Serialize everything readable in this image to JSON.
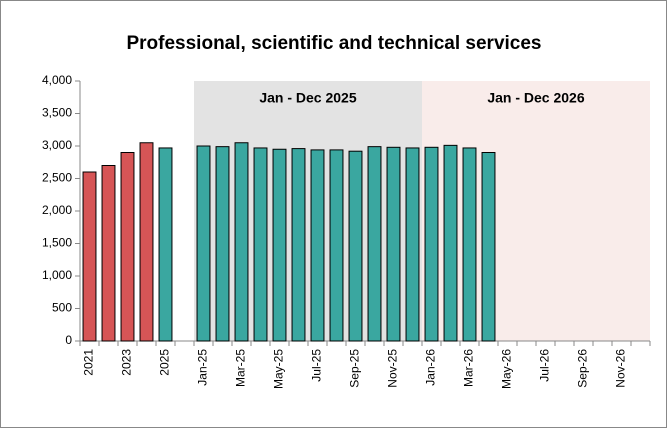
{
  "chart_data": {
    "type": "bar",
    "title": "Professional, scientific and technical services",
    "categories": [
      "2021",
      null,
      "2023",
      null,
      "2025",
      null,
      "Jan-25",
      null,
      "Mar-25",
      null,
      "May-25",
      null,
      "Jul-25",
      null,
      "Sep-25",
      null,
      "Nov-25",
      null,
      "Jan-26",
      null,
      "Mar-26",
      null,
      "May-26",
      null,
      "Jul-26",
      null,
      "Sep-26",
      null,
      "Nov-26",
      null
    ],
    "values": [
      2600,
      2700,
      2900,
      3050,
      2970,
      null,
      3000,
      2990,
      3050,
      2970,
      2950,
      2960,
      2940,
      2940,
      2920,
      2990,
      2980,
      2970,
      2980,
      3010,
      2970,
      2900,
      null,
      null,
      null,
      null,
      null,
      null,
      null,
      null
    ],
    "colors": [
      "#d65556",
      "#d65556",
      "#d65556",
      "#d65556",
      "#3aa7a0",
      null,
      "#3aa7a0",
      "#3aa7a0",
      "#3aa7a0",
      "#3aa7a0",
      "#3aa7a0",
      "#3aa7a0",
      "#3aa7a0",
      "#3aa7a0",
      "#3aa7a0",
      "#3aa7a0",
      "#3aa7a0",
      "#3aa7a0",
      "#3aa7a0",
      "#3aa7a0",
      "#3aa7a0",
      "#3aa7a0",
      null,
      null,
      null,
      null,
      null,
      null,
      null,
      null
    ],
    "regions": [
      {
        "label": "Jan - Dec 2025",
        "color": "#e3e3e3"
      },
      {
        "label": "Jan - Dec 2026",
        "color": "#f9ecea"
      }
    ],
    "ylim": [
      0,
      4000
    ],
    "yticks": [
      0,
      {
        "value": 500,
        "label": "500"
      },
      {
        "value": 1000,
        "label": "1,000"
      },
      {
        "value": 1500,
        "label": "1,500"
      },
      {
        "value": 2000,
        "label": "2,000"
      },
      {
        "value": 2500,
        "label": "2,500"
      },
      {
        "value": 3000,
        "label": "3,000"
      },
      {
        "value": 3500,
        "label": "3,500"
      },
      {
        "value": 4000,
        "label": "4,000"
      }
    ]
  }
}
